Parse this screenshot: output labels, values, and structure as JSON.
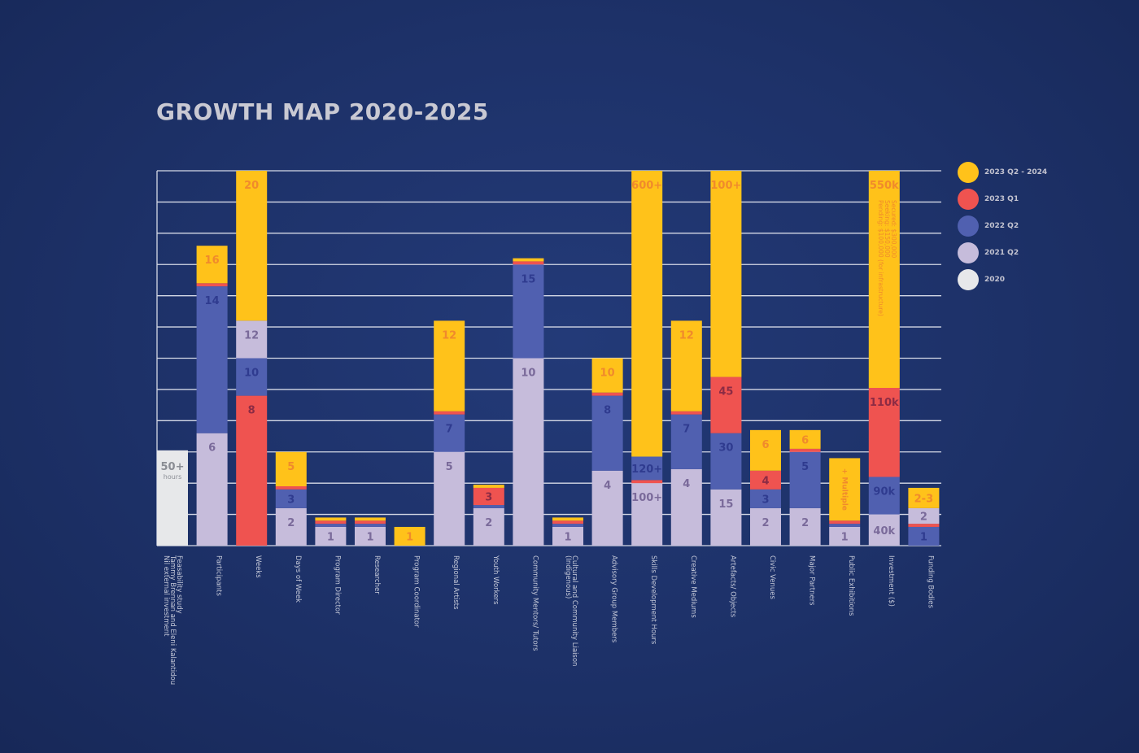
{
  "title": "GROWTH MAP 2020-2025",
  "colors": {
    "2020": "#e7e8ea",
    "2021 Q2": "#c6bcdb",
    "2022 Q2": "#5060b0",
    "2023 Q1": "#ef5350",
    "2023 Q2 - 2024": "#ffc21a",
    "grid": "#d5d9e6",
    "axis_text": "#c4c8d8"
  },
  "legend": [
    {
      "key": "2023 Q2 - 2024",
      "label": "2023 Q2 - 2024"
    },
    {
      "key": "2023 Q1",
      "label": "2023 Q1"
    },
    {
      "key": "2022 Q2",
      "label": "2022 Q2"
    },
    {
      "key": "2021 Q2",
      "label": "2021 Q2"
    },
    {
      "key": "2020",
      "label": "2020"
    }
  ],
  "chart_data": {
    "type": "bar",
    "stacked": true,
    "title": "GROWTH MAP 2020-2025",
    "grid": true,
    "legend_position": "right",
    "ylim": [
      0,
      12
    ],
    "categories": [
      "Feasability study\nTammy Brennan and Eleni Kalantidou\nNil external investment",
      "Participants",
      "Weeks",
      "Days of Week",
      "Program Director",
      "Researcher",
      "Program Coordinator",
      "Regional Artists",
      "Youth Workers",
      "Community Mentors/ Tutors",
      "Cultural and Community Liaison\n(Indigenous)",
      "Advisory Group Members",
      "Skills Development Hours",
      "Creative Mediums",
      "Artefacts/ Objects",
      "Civic Venues",
      "Major Partners",
      "Public Exhibitions",
      "Investment ($)",
      "Funding Bodies"
    ],
    "bars": [
      {
        "segments": [
          {
            "series": "2020",
            "h": 3.05,
            "label": "50+",
            "sublabel": "hours"
          }
        ]
      },
      {
        "segments": [
          {
            "series": "2021 Q2",
            "h": 3.6,
            "label": "6"
          },
          {
            "series": "2022 Q2",
            "h": 4.7,
            "label": "14"
          },
          {
            "series": "2023 Q1",
            "h": 0.1
          },
          {
            "series": "2023 Q2 - 2024",
            "h": 1.2,
            "label": "16"
          }
        ]
      },
      {
        "segments": [
          {
            "series": "2023 Q1",
            "h": 4.8,
            "label": "8"
          },
          {
            "series": "2022 Q2",
            "h": 1.2,
            "label": "10"
          },
          {
            "series": "2021 Q2",
            "h": 1.2,
            "label": "12"
          },
          {
            "series": "2023 Q2 - 2024",
            "h": 4.8,
            "label": "20"
          }
        ]
      },
      {
        "segments": [
          {
            "series": "2021 Q2",
            "h": 1.2,
            "label": "2"
          },
          {
            "series": "2022 Q2",
            "h": 0.6,
            "label": "3"
          },
          {
            "series": "2023 Q1",
            "h": 0.1
          },
          {
            "series": "2023 Q2 - 2024",
            "h": 1.1,
            "label": "5"
          }
        ]
      },
      {
        "segments": [
          {
            "series": "2021 Q2",
            "h": 0.6,
            "label": "1"
          },
          {
            "series": "2022 Q2",
            "h": 0.1
          },
          {
            "series": "2023 Q1",
            "h": 0.1
          },
          {
            "series": "2023 Q2 - 2024",
            "h": 0.1
          }
        ]
      },
      {
        "segments": [
          {
            "series": "2021 Q2",
            "h": 0.6,
            "label": "1"
          },
          {
            "series": "2022 Q2",
            "h": 0.1
          },
          {
            "series": "2023 Q1",
            "h": 0.1
          },
          {
            "series": "2023 Q2 - 2024",
            "h": 0.1
          }
        ]
      },
      {
        "segments": [
          {
            "series": "2023 Q2 - 2024",
            "h": 0.6,
            "label": "1"
          }
        ]
      },
      {
        "segments": [
          {
            "series": "2021 Q2",
            "h": 3.0,
            "label": "5"
          },
          {
            "series": "2022 Q2",
            "h": 1.2,
            "label": "7"
          },
          {
            "series": "2023 Q1",
            "h": 0.1
          },
          {
            "series": "2023 Q2 - 2024",
            "h": 2.9,
            "label": "12"
          }
        ]
      },
      {
        "segments": [
          {
            "series": "2021 Q2",
            "h": 1.2,
            "label": "2"
          },
          {
            "series": "2022 Q2",
            "h": 0.1
          },
          {
            "series": "2023 Q1",
            "h": 0.55,
            "label": "3"
          },
          {
            "series": "2023 Q2 - 2024",
            "h": 0.1
          }
        ]
      },
      {
        "segments": [
          {
            "series": "2021 Q2",
            "h": 6.0,
            "label": "10"
          },
          {
            "series": "2022 Q2",
            "h": 3.0,
            "label": "15"
          },
          {
            "series": "2023 Q1",
            "h": 0.1
          },
          {
            "series": "2023 Q2 - 2024",
            "h": 0.1
          }
        ]
      },
      {
        "segments": [
          {
            "series": "2021 Q2",
            "h": 0.6,
            "label": "1"
          },
          {
            "series": "2022 Q2",
            "h": 0.1
          },
          {
            "series": "2023 Q1",
            "h": 0.1
          },
          {
            "series": "2023 Q2 - 2024",
            "h": 0.1
          }
        ]
      },
      {
        "segments": [
          {
            "series": "2021 Q2",
            "h": 2.4,
            "label": "4"
          },
          {
            "series": "2022 Q2",
            "h": 2.4,
            "label": "8"
          },
          {
            "series": "2023 Q1",
            "h": 0.1
          },
          {
            "series": "2023 Q2 - 2024",
            "h": 1.1,
            "label": "10"
          }
        ]
      },
      {
        "segments": [
          {
            "series": "2021 Q2",
            "h": 2.0,
            "label": "100+"
          },
          {
            "series": "2023 Q1",
            "h": 0.1
          },
          {
            "series": "2022 Q2",
            "h": 0.75,
            "label": "120+"
          },
          {
            "series": "2023 Q2 - 2024",
            "h": 9.15,
            "label": "600+"
          }
        ]
      },
      {
        "segments": [
          {
            "series": "2021 Q2",
            "h": 2.45,
            "label": "4"
          },
          {
            "series": "2022 Q2",
            "h": 1.75,
            "label": "7"
          },
          {
            "series": "2023 Q1",
            "h": 0.1
          },
          {
            "series": "2023 Q2 - 2024",
            "h": 2.9,
            "label": "12"
          }
        ]
      },
      {
        "segments": [
          {
            "series": "2021 Q2",
            "h": 1.8,
            "label": "15"
          },
          {
            "series": "2022 Q2",
            "h": 1.8,
            "label": "30"
          },
          {
            "series": "2023 Q1",
            "h": 1.8,
            "label": "45"
          },
          {
            "series": "2023 Q2 - 2024",
            "h": 6.6,
            "label": "100+"
          }
        ]
      },
      {
        "segments": [
          {
            "series": "2021 Q2",
            "h": 1.2,
            "label": "2"
          },
          {
            "series": "2022 Q2",
            "h": 0.6,
            "label": "3"
          },
          {
            "series": "2023 Q1",
            "h": 0.6,
            "label": "4"
          },
          {
            "series": "2023 Q2 - 2024",
            "h": 1.3,
            "label": "6"
          }
        ]
      },
      {
        "segments": [
          {
            "series": "2021 Q2",
            "h": 1.2,
            "label": "2"
          },
          {
            "series": "2022 Q2",
            "h": 1.8,
            "label": "5"
          },
          {
            "series": "2023 Q1",
            "h": 0.1
          },
          {
            "series": "2023 Q2 - 2024",
            "h": 0.6,
            "label": "6"
          }
        ]
      },
      {
        "segments": [
          {
            "series": "2021 Q2",
            "h": 0.6,
            "label": "1"
          },
          {
            "series": "2022 Q2",
            "h": 0.1
          },
          {
            "series": "2023 Q1",
            "h": 0.1
          },
          {
            "series": "2023 Q2 - 2024",
            "h": 2.0,
            "label": "+ Multiple",
            "vertical": true
          }
        ]
      },
      {
        "segments": [
          {
            "series": "2021 Q2",
            "h": 1.0,
            "label": "40k"
          },
          {
            "series": "2022 Q2",
            "h": 1.2,
            "label": "90k"
          },
          {
            "series": "2023 Q1",
            "h": 2.85,
            "label": "110k"
          },
          {
            "series": "2023 Q2 - 2024",
            "h": 6.95,
            "label": "550k",
            "note": "Secured: $300,000\nSeeking: $150,000\nPending: $100,000 (for infrastructure)"
          }
        ]
      },
      {
        "segments": [
          {
            "series": "2022 Q2",
            "h": 0.6,
            "label": "1"
          },
          {
            "series": "2023 Q1",
            "h": 0.1
          },
          {
            "series": "2021 Q2",
            "h": 0.5,
            "label": "2"
          },
          {
            "series": "2023 Q2 - 2024",
            "h": 0.65,
            "label": "2-3"
          }
        ]
      }
    ]
  }
}
